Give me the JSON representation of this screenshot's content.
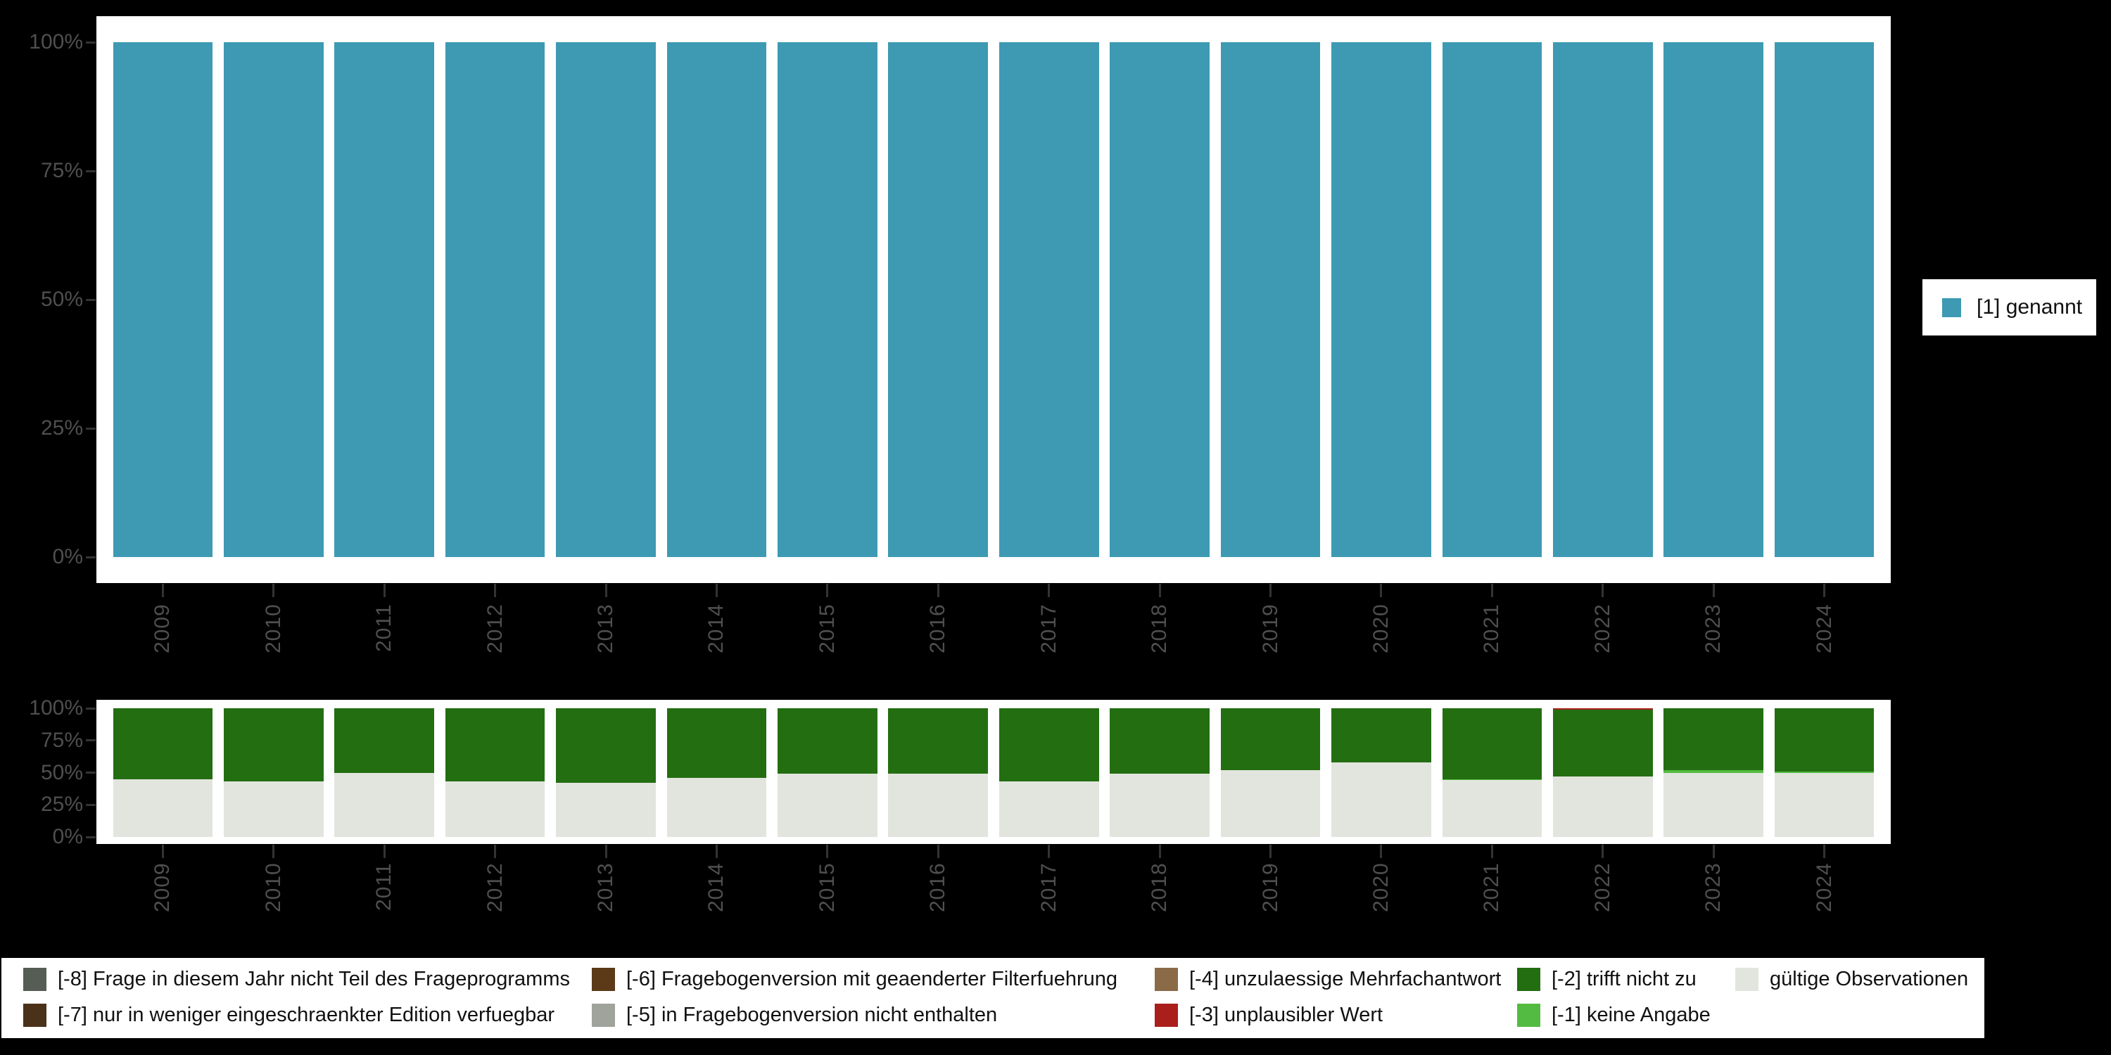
{
  "figure": {
    "background_color": "#000000",
    "panel_color": "#ffffff",
    "axis_text_color": "#4f4f4f",
    "tick_color": "#333333"
  },
  "chart_data": [
    {
      "id": "response-distribution",
      "type": "bar",
      "stacked": true,
      "normalized": "percent",
      "title": "",
      "xlabel": "",
      "ylabel": "",
      "ylim": [
        0,
        100
      ],
      "grid": false,
      "legend_position": "right",
      "categories": [
        "2009",
        "2010",
        "2011",
        "2012",
        "2013",
        "2014",
        "2015",
        "2016",
        "2017",
        "2018",
        "2019",
        "2020",
        "2021",
        "2022",
        "2023",
        "2024"
      ],
      "yticks": [
        "0%",
        "25%",
        "50%",
        "75%",
        "100%"
      ],
      "series": [
        {
          "name": "[1] genannt",
          "color": "#3d9ab2",
          "values": [
            100,
            100,
            100,
            100,
            100,
            100,
            100,
            100,
            100,
            100,
            100,
            100,
            100,
            100,
            100,
            100
          ]
        }
      ]
    },
    {
      "id": "missings-distribution",
      "type": "bar",
      "stacked": true,
      "normalized": "percent",
      "title": "",
      "xlabel": "",
      "ylabel": "",
      "ylim": [
        0,
        100
      ],
      "grid": false,
      "legend_position": "bottom",
      "categories": [
        "2009",
        "2010",
        "2011",
        "2012",
        "2013",
        "2014",
        "2015",
        "2016",
        "2017",
        "2018",
        "2019",
        "2020",
        "2021",
        "2022",
        "2023",
        "2024"
      ],
      "yticks": [
        "0%",
        "25%",
        "50%",
        "75%",
        "100%"
      ],
      "series": [
        {
          "name": "gültige Observationen",
          "color": "#e2e5de",
          "values": [
            45,
            43,
            50,
            43,
            42,
            46,
            49,
            49,
            43,
            49,
            52,
            58,
            44,
            47,
            50,
            50
          ]
        },
        {
          "name": "[-1] keine Angabe",
          "color": "#53bb41",
          "values": [
            0,
            0,
            0,
            0,
            0,
            0,
            0,
            0,
            0,
            0,
            0,
            0,
            1,
            0,
            2,
            1
          ]
        },
        {
          "name": "[-2] trifft nicht zu",
          "color": "#236e11",
          "values": [
            55,
            57,
            50,
            57,
            58,
            54,
            51,
            51,
            57,
            51,
            48,
            42,
            55,
            52,
            48,
            49
          ]
        },
        {
          "name": "[-3] unplausibler Wert",
          "color": "#aa1f1b",
          "values": [
            0,
            0,
            0,
            0,
            0,
            0,
            0,
            0,
            0,
            0,
            0,
            0,
            0,
            1,
            0,
            0
          ]
        }
      ]
    }
  ],
  "missing_legend": {
    "columns": [
      [
        {
          "label": "[-8] Frage in diesem Jahr nicht Teil des Frageprogramms",
          "color": "#565d55"
        },
        {
          "label": "[-7] nur in weniger eingeschraenkter Edition verfuegbar",
          "color": "#4a3119"
        }
      ],
      [
        {
          "label": "[-6] Fragebogenversion mit geaenderter Filterfuehrung",
          "color": "#5c3a17"
        },
        {
          "label": "[-5] in Fragebogenversion nicht enthalten",
          "color": "#9fa39c"
        }
      ],
      [
        {
          "label": "[-4] unzulaessige Mehrfachantwort",
          "color": "#8a6a47"
        },
        {
          "label": "[-3] unplausibler Wert",
          "color": "#aa1f1b"
        }
      ],
      [
        {
          "label": "[-2] trifft nicht zu",
          "color": "#236e11"
        },
        {
          "label": "[-1] keine Angabe",
          "color": "#53bb41"
        }
      ],
      [
        {
          "label": "gültige Observationen",
          "color": "#e2e5de"
        }
      ]
    ]
  }
}
